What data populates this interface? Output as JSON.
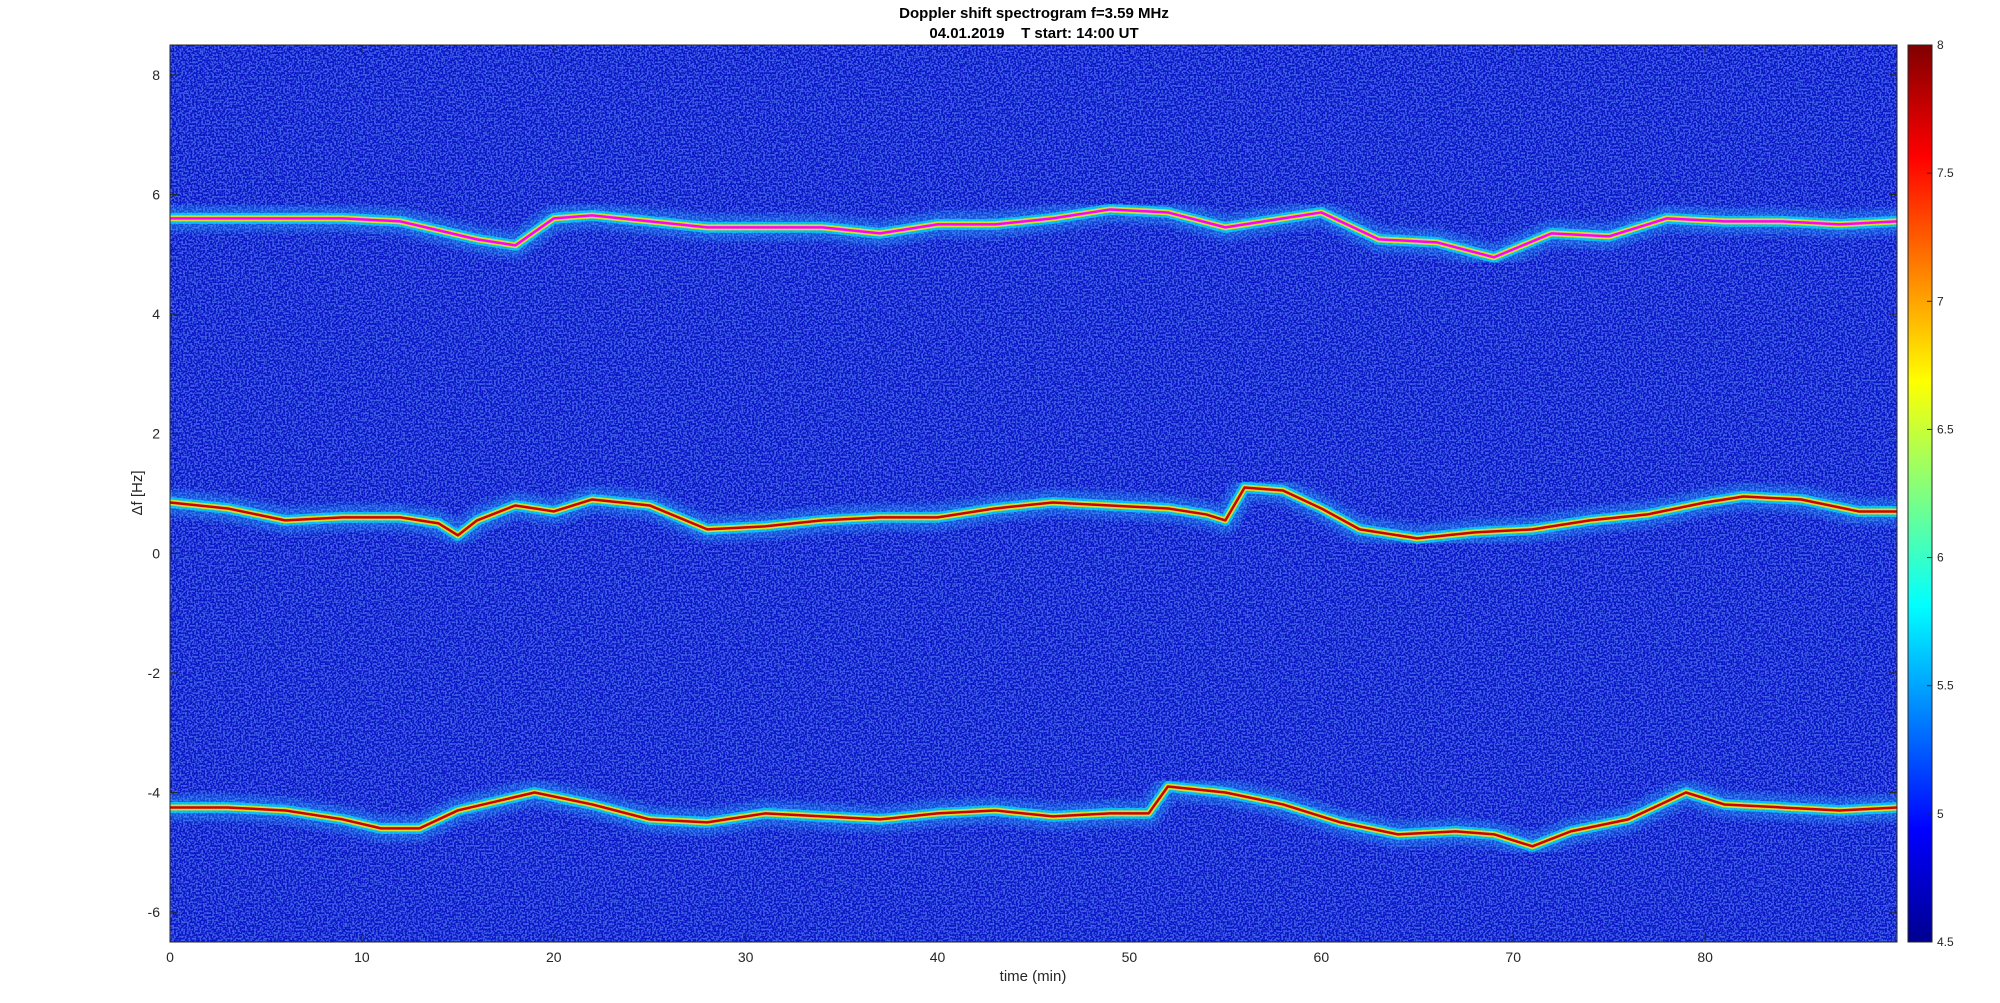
{
  "chart_data": {
    "type": "heatmap",
    "title": "Doppler shift spectrogram f=3.59 MHz",
    "subtitle": "04.01.2019    T start: 14:00 UT",
    "xlabel": "time (min)",
    "ylabel": "Δf [Hz]",
    "xlim": [
      0,
      90
    ],
    "ylim": [
      -6.5,
      8.5
    ],
    "x_ticks": [
      0,
      10,
      20,
      30,
      40,
      50,
      60,
      70,
      80
    ],
    "y_ticks": [
      -6,
      -4,
      -2,
      0,
      2,
      4,
      6,
      8
    ],
    "colormap": "jet",
    "colorbar": {
      "limits": [
        4.5,
        8
      ],
      "ticks": [
        4.5,
        5,
        5.5,
        6,
        6.5,
        7,
        7.5,
        8
      ]
    },
    "background_color": "#0a14c8",
    "series": [
      {
        "x": [
          0,
          3,
          6,
          9,
          12,
          14,
          16,
          18,
          20,
          22,
          25,
          28,
          31,
          34,
          37,
          40,
          43,
          46,
          49,
          52,
          55,
          57,
          60,
          63,
          66,
          69,
          72,
          75,
          78,
          81,
          84,
          87,
          90
        ],
        "y": [
          5.6,
          5.6,
          5.6,
          5.6,
          5.55,
          5.4,
          5.25,
          5.15,
          5.6,
          5.65,
          5.55,
          5.45,
          5.45,
          5.45,
          5.35,
          5.5,
          5.5,
          5.6,
          5.75,
          5.7,
          5.45,
          5.55,
          5.7,
          5.25,
          5.2,
          4.95,
          5.35,
          5.3,
          5.6,
          5.55,
          5.55,
          5.5,
          5.55
        ],
        "color": "#ff00ff"
      },
      {
        "x": [
          0,
          3,
          6,
          9,
          12,
          14,
          15,
          16,
          18,
          20,
          22,
          25,
          28,
          31,
          34,
          37,
          40,
          43,
          46,
          49,
          52,
          54,
          55,
          56,
          58,
          60,
          62,
          65,
          68,
          71,
          74,
          77,
          80,
          82,
          85,
          88,
          90
        ],
        "y": [
          0.85,
          0.75,
          0.55,
          0.6,
          0.6,
          0.5,
          0.3,
          0.55,
          0.8,
          0.7,
          0.9,
          0.8,
          0.4,
          0.45,
          0.55,
          0.6,
          0.6,
          0.75,
          0.85,
          0.8,
          0.75,
          0.65,
          0.55,
          1.1,
          1.05,
          0.75,
          0.4,
          0.25,
          0.35,
          0.4,
          0.55,
          0.65,
          0.85,
          0.95,
          0.9,
          0.7,
          0.7
        ],
        "color": "#cc0000"
      },
      {
        "x": [
          0,
          3,
          6,
          9,
          11,
          13,
          15,
          17,
          19,
          22,
          25,
          28,
          31,
          34,
          37,
          40,
          43,
          46,
          49,
          51,
          52,
          55,
          58,
          61,
          64,
          67,
          69,
          71,
          73,
          76,
          79,
          81,
          84,
          87,
          90
        ],
        "y": [
          -4.25,
          -4.25,
          -4.3,
          -4.45,
          -4.6,
          -4.6,
          -4.3,
          -4.15,
          -4.0,
          -4.2,
          -4.45,
          -4.5,
          -4.35,
          -4.4,
          -4.45,
          -4.35,
          -4.3,
          -4.4,
          -4.35,
          -4.35,
          -3.9,
          -4.0,
          -4.2,
          -4.5,
          -4.7,
          -4.65,
          -4.7,
          -4.9,
          -4.65,
          -4.45,
          -4.0,
          -4.2,
          -4.25,
          -4.3,
          -4.25
        ],
        "color": "#cc0000"
      }
    ]
  }
}
